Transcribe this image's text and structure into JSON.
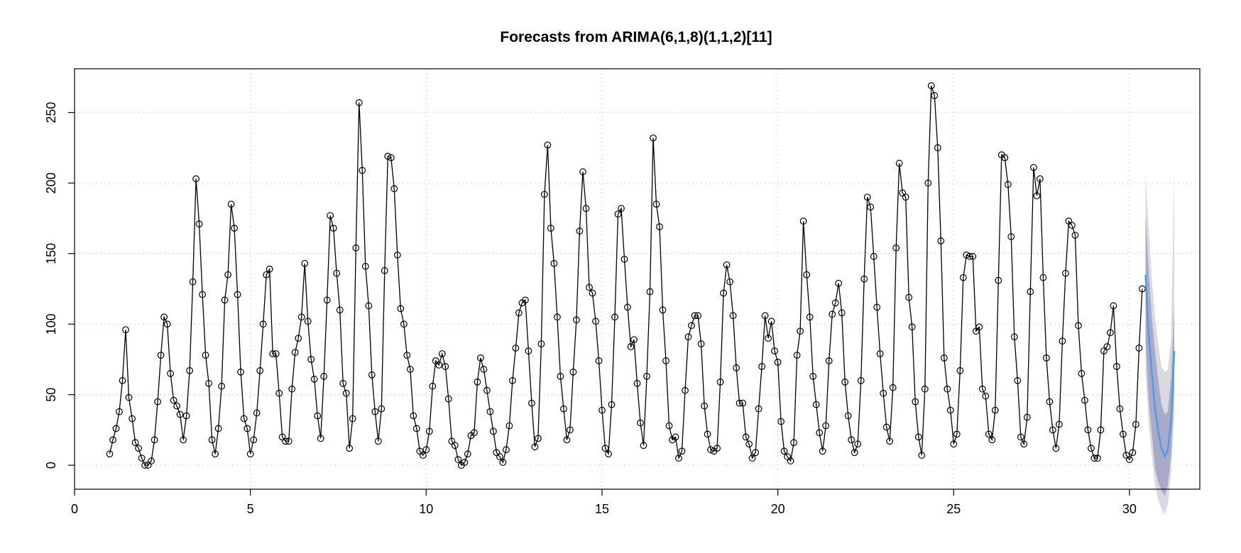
{
  "chart_data": {
    "type": "line",
    "title": "Forecasts from ARIMA(6,1,8)(1,1,2)[11]",
    "xlabel": "",
    "ylabel": "",
    "xlim": [
      0,
      32
    ],
    "ylim": [
      -17,
      281
    ],
    "x_ticks": [
      0,
      5,
      10,
      15,
      20,
      25,
      30
    ],
    "y_ticks": [
      0,
      50,
      100,
      150,
      200,
      250
    ],
    "grid": true,
    "colors": {
      "observed": "#000000",
      "forecast_mean": "#4b9be6",
      "band_80": "#a9a9c9",
      "band_95": "#d9d9df"
    },
    "observed": {
      "start": 1,
      "frequency": 11,
      "values": [
        8,
        18,
        26,
        38,
        60,
        96,
        48,
        33,
        16,
        12,
        5,
        0,
        0,
        3,
        18,
        45,
        78,
        105,
        100,
        65,
        46,
        42,
        36,
        18,
        35,
        67,
        130,
        203,
        171,
        121,
        78,
        58,
        18,
        8,
        26,
        56,
        117,
        135,
        185,
        168,
        121,
        66,
        33,
        26,
        8,
        18,
        37,
        67,
        100,
        135,
        139,
        79,
        79,
        51,
        20,
        17,
        17,
        54,
        80,
        90,
        105,
        143,
        102,
        75,
        61,
        35,
        19,
        63,
        117,
        177,
        168,
        136,
        110,
        58,
        51,
        12,
        33,
        154,
        257,
        209,
        141,
        113,
        64,
        38,
        17,
        40,
        138,
        219,
        218,
        196,
        149,
        111,
        100,
        78,
        68,
        35,
        26,
        10,
        7,
        11,
        24,
        56,
        74,
        71,
        79,
        70,
        47,
        17,
        14,
        4,
        0,
        2,
        8,
        21,
        23,
        59,
        76,
        68,
        53,
        38,
        24,
        9,
        6,
        2,
        11,
        28,
        60,
        83,
        108,
        115,
        117,
        81,
        44,
        13,
        19,
        86,
        192,
        227,
        168,
        143,
        105,
        63,
        40,
        18,
        25,
        66,
        103,
        166,
        208,
        182,
        126,
        122,
        102,
        74,
        39,
        12,
        8,
        43,
        105,
        178,
        182,
        146,
        112,
        84,
        89,
        58,
        30,
        14,
        63,
        123,
        232,
        185,
        169,
        110,
        74,
        28,
        18,
        20,
        5,
        10,
        53,
        91,
        99,
        106,
        106,
        86,
        42,
        22,
        11,
        10,
        12,
        59,
        122,
        142,
        130,
        106,
        69,
        44,
        44,
        20,
        15,
        5,
        9,
        40,
        70,
        106,
        90,
        102,
        81,
        73,
        31,
        10,
        6,
        3,
        16,
        78,
        95,
        173,
        135,
        105,
        63,
        43,
        23,
        10,
        28,
        74,
        107,
        115,
        129,
        108,
        59,
        35,
        18,
        9,
        15,
        60,
        132,
        190,
        183,
        148,
        112,
        79,
        51,
        27,
        17,
        55,
        154,
        214,
        193,
        190,
        119,
        98,
        45,
        20,
        7,
        54,
        200,
        269,
        262,
        225,
        159,
        76,
        54,
        39,
        15,
        22,
        67,
        133,
        149,
        148,
        148,
        95,
        98,
        54,
        49,
        22,
        18,
        39,
        131,
        220,
        218,
        199,
        162,
        91,
        60,
        20,
        15,
        34,
        123,
        211,
        191,
        203,
        133,
        76,
        45,
        25,
        12,
        29,
        88,
        136,
        173,
        170,
        163,
        99,
        65,
        46,
        25,
        12,
        5,
        5,
        25,
        81,
        84,
        94,
        113,
        70,
        40,
        22,
        7,
        4,
        9,
        29,
        83,
        125
      ]
    },
    "forecast": {
      "x": [
        30.455,
        30.545,
        30.636,
        30.727,
        30.818,
        30.909,
        31.0,
        31.091,
        31.182,
        31.273
      ],
      "mean": [
        135,
        93,
        65,
        40,
        24,
        12,
        6,
        11,
        32,
        81
      ],
      "lo80": [
        88,
        47,
        22,
        -2,
        -12,
        -18,
        -22,
        -14,
        7,
        52
      ],
      "hi80": [
        178,
        138,
        105,
        80,
        60,
        43,
        36,
        38,
        62,
        112
      ],
      "lo95": [
        66,
        30,
        6,
        -14,
        -25,
        -31,
        -35,
        -28,
        -5,
        36
      ],
      "hi95": [
        206,
        168,
        132,
        105,
        85,
        70,
        66,
        68,
        90,
        207
      ]
    }
  }
}
